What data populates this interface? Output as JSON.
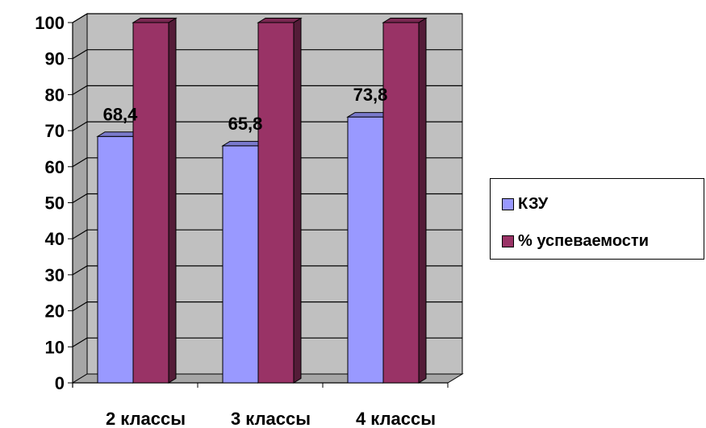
{
  "chart_data": {
    "type": "bar",
    "categories": [
      "2 классы",
      "3 классы",
      "4 классы"
    ],
    "series": [
      {
        "name": "КЗУ",
        "values": [
          68.4,
          65.8,
          73.8
        ],
        "color": "#9999ff",
        "data_labels": [
          "68,4",
          "65,8",
          "73,8"
        ]
      },
      {
        "name": "% успеваемости",
        "values": [
          100,
          100,
          100
        ],
        "color": "#993366",
        "data_labels": []
      }
    ],
    "ylim": [
      0,
      100
    ],
    "yticks": [
      "0",
      "10",
      "20",
      "30",
      "40",
      "50",
      "60",
      "70",
      "80",
      "90",
      "100"
    ],
    "title": "",
    "xlabel": "",
    "ylabel": "",
    "grid": true,
    "legend_position": "right",
    "style": "3d-clustered-column"
  }
}
